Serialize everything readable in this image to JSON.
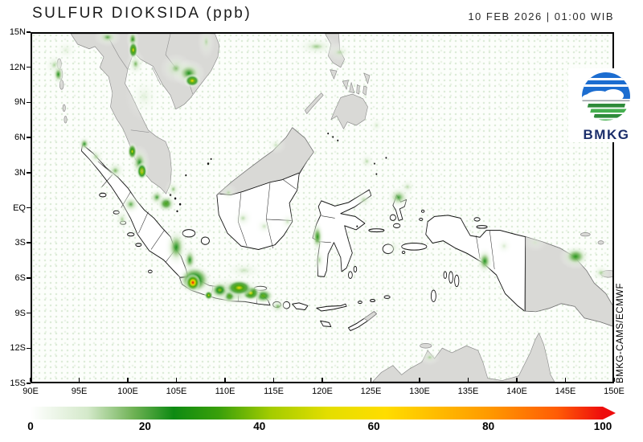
{
  "header": {
    "title": "SULFUR DIOKSIDA (ppb)",
    "datetime": "10 FEB 2026 | 01:00 WIB"
  },
  "logo": {
    "text": "BMKG"
  },
  "credit": "BMKG-CAMS/ECMWF",
  "axes": {
    "lat_labels": [
      "15N",
      "12N",
      "9N",
      "6N",
      "3N",
      "EQ",
      "3S",
      "6S",
      "9S",
      "12S",
      "15S"
    ],
    "lon_labels": [
      "90E",
      "95E",
      "100E",
      "105E",
      "110E",
      "115E",
      "120E",
      "125E",
      "130E",
      "135E",
      "140E",
      "145E",
      "150E"
    ]
  },
  "colors": {
    "land_foreign": "#d9d9d6",
    "land_foreign_stroke": "#8a8a8a",
    "land_indonesia": "#ffffff",
    "coast_stroke": "#111111",
    "logo_blue": "#1c6dd0",
    "logo_green_dark": "#2e8b3a",
    "logo_green_light": "#46b050",
    "logo_text_color": "#1b2e6b"
  },
  "chart_data": {
    "type": "heatmap",
    "title": "SULFUR DIOKSIDA (ppb)",
    "units": "ppb",
    "timestamp": "10 FEB 2026 | 01:00 WIB",
    "source": "BMKG-CAMS/ECMWF",
    "lon_range": [
      90,
      150
    ],
    "lat_range": [
      -15,
      15
    ],
    "colorbar": {
      "min": 0,
      "max": 100,
      "ticks": [
        0,
        20,
        40,
        60,
        80,
        100
      ],
      "anchors": [
        [
          0,
          "#ffffff"
        ],
        [
          10,
          "#d4e9ca"
        ],
        [
          18,
          "#6fb255"
        ],
        [
          25,
          "#0e8a12"
        ],
        [
          33,
          "#3aa00a"
        ],
        [
          42,
          "#a4cc00"
        ],
        [
          52,
          "#e4de00"
        ],
        [
          62,
          "#ffdd00"
        ],
        [
          80,
          "#ff9a00"
        ],
        [
          92,
          "#ff5c05"
        ],
        [
          100,
          "#ee0c0c"
        ]
      ]
    },
    "hotspot_fields": [
      "lon",
      "lat",
      "peak_ppb",
      "rx_deg",
      "ry_deg"
    ],
    "hotspots": [
      [
        92.3,
        12.3,
        14,
        1.2,
        1.2
      ],
      [
        92.7,
        11.5,
        26,
        0.7,
        1.0
      ],
      [
        93.5,
        13.6,
        10,
        1.5,
        1.2
      ],
      [
        97.8,
        14.7,
        20,
        1.4,
        0.8
      ],
      [
        100.4,
        14.5,
        28,
        0.65,
        1.0
      ],
      [
        100.45,
        13.6,
        58,
        0.55,
        0.85
      ],
      [
        100.7,
        12.4,
        18,
        1.0,
        1.2
      ],
      [
        101.6,
        9.6,
        10,
        2.0,
        2.2
      ],
      [
        104.9,
        12.0,
        18,
        1.7,
        1.3
      ],
      [
        106.2,
        11.6,
        26,
        1.7,
        1.2
      ],
      [
        106.55,
        10.95,
        62,
        0.9,
        0.6
      ],
      [
        108.0,
        14.3,
        13,
        0.9,
        1.5
      ],
      [
        95.4,
        5.5,
        24,
        0.75,
        0.75
      ],
      [
        96.6,
        4.4,
        14,
        1.1,
        1.0
      ],
      [
        98.6,
        3.2,
        18,
        1.2,
        1.0
      ],
      [
        100.35,
        4.85,
        52,
        0.55,
        0.8
      ],
      [
        101.1,
        3.9,
        24,
        1.1,
        1.5
      ],
      [
        101.35,
        3.15,
        66,
        0.6,
        0.8
      ],
      [
        101.35,
        3.18,
        100,
        0.12,
        0.12
      ],
      [
        102.9,
        0.9,
        22,
        1.0,
        0.9
      ],
      [
        103.85,
        0.35,
        33,
        1.1,
        0.85
      ],
      [
        104.6,
        1.6,
        16,
        0.9,
        0.9
      ],
      [
        100.2,
        0.3,
        20,
        1.2,
        1.0
      ],
      [
        99.3,
        -1.0,
        14,
        1.0,
        1.2
      ],
      [
        104.9,
        -3.4,
        26,
        1.3,
        1.9
      ],
      [
        106.3,
        -4.5,
        24,
        0.9,
        1.4
      ],
      [
        106.8,
        -6.2,
        45,
        1.9,
        1.4
      ],
      [
        106.62,
        -6.45,
        100,
        0.8,
        0.75
      ],
      [
        108.25,
        -7.55,
        55,
        0.5,
        0.45
      ],
      [
        109.4,
        -7.1,
        40,
        1.1,
        0.8
      ],
      [
        110.4,
        -7.6,
        34,
        0.9,
        0.8
      ],
      [
        110.6,
        -7.2,
        22,
        4.6,
        1.5
      ],
      [
        111.4,
        -6.9,
        58,
        1.6,
        0.8
      ],
      [
        112.6,
        -7.35,
        56,
        1.1,
        0.75
      ],
      [
        113.9,
        -7.6,
        36,
        1.3,
        0.8
      ],
      [
        115.4,
        -8.5,
        18,
        1.1,
        0.8
      ],
      [
        111.9,
        -5.4,
        12,
        2.5,
        1.0
      ],
      [
        110.3,
        1.3,
        13,
        1.0,
        0.8
      ],
      [
        111.8,
        -0.9,
        13,
        1.2,
        1.0
      ],
      [
        114.0,
        -1.6,
        12,
        1.1,
        0.9
      ],
      [
        116.4,
        -1.2,
        12,
        0.9,
        0.9
      ],
      [
        115.2,
        5.4,
        12,
        1.1,
        0.8
      ],
      [
        119.5,
        -2.5,
        28,
        0.75,
        1.5
      ],
      [
        119.7,
        -4.5,
        14,
        0.7,
        1.3
      ],
      [
        121.8,
        13.4,
        13,
        1.6,
        0.9
      ],
      [
        119.4,
        13.9,
        15,
        2.6,
        1.0
      ],
      [
        124.6,
        4.0,
        13,
        1.0,
        0.9
      ],
      [
        125.6,
        7.1,
        11,
        0.9,
        0.9
      ],
      [
        124.3,
        0.7,
        13,
        1.3,
        1.0
      ],
      [
        127.9,
        0.9,
        22,
        1.4,
        1.1
      ],
      [
        128.8,
        1.8,
        13,
        1.1,
        0.9
      ],
      [
        127.4,
        -3.4,
        10,
        1.1,
        0.9
      ],
      [
        131.1,
        -12.9,
        14,
        1.1,
        0.7
      ],
      [
        136.8,
        -4.6,
        26,
        1.0,
        1.3
      ],
      [
        138.8,
        -3.3,
        11,
        1.0,
        0.9
      ],
      [
        146.2,
        -4.2,
        28,
        1.7,
        1.1
      ],
      [
        148.8,
        -5.6,
        14,
        1.2,
        0.9
      ],
      [
        142.0,
        -3.0,
        10,
        1.3,
        0.8
      ]
    ]
  }
}
